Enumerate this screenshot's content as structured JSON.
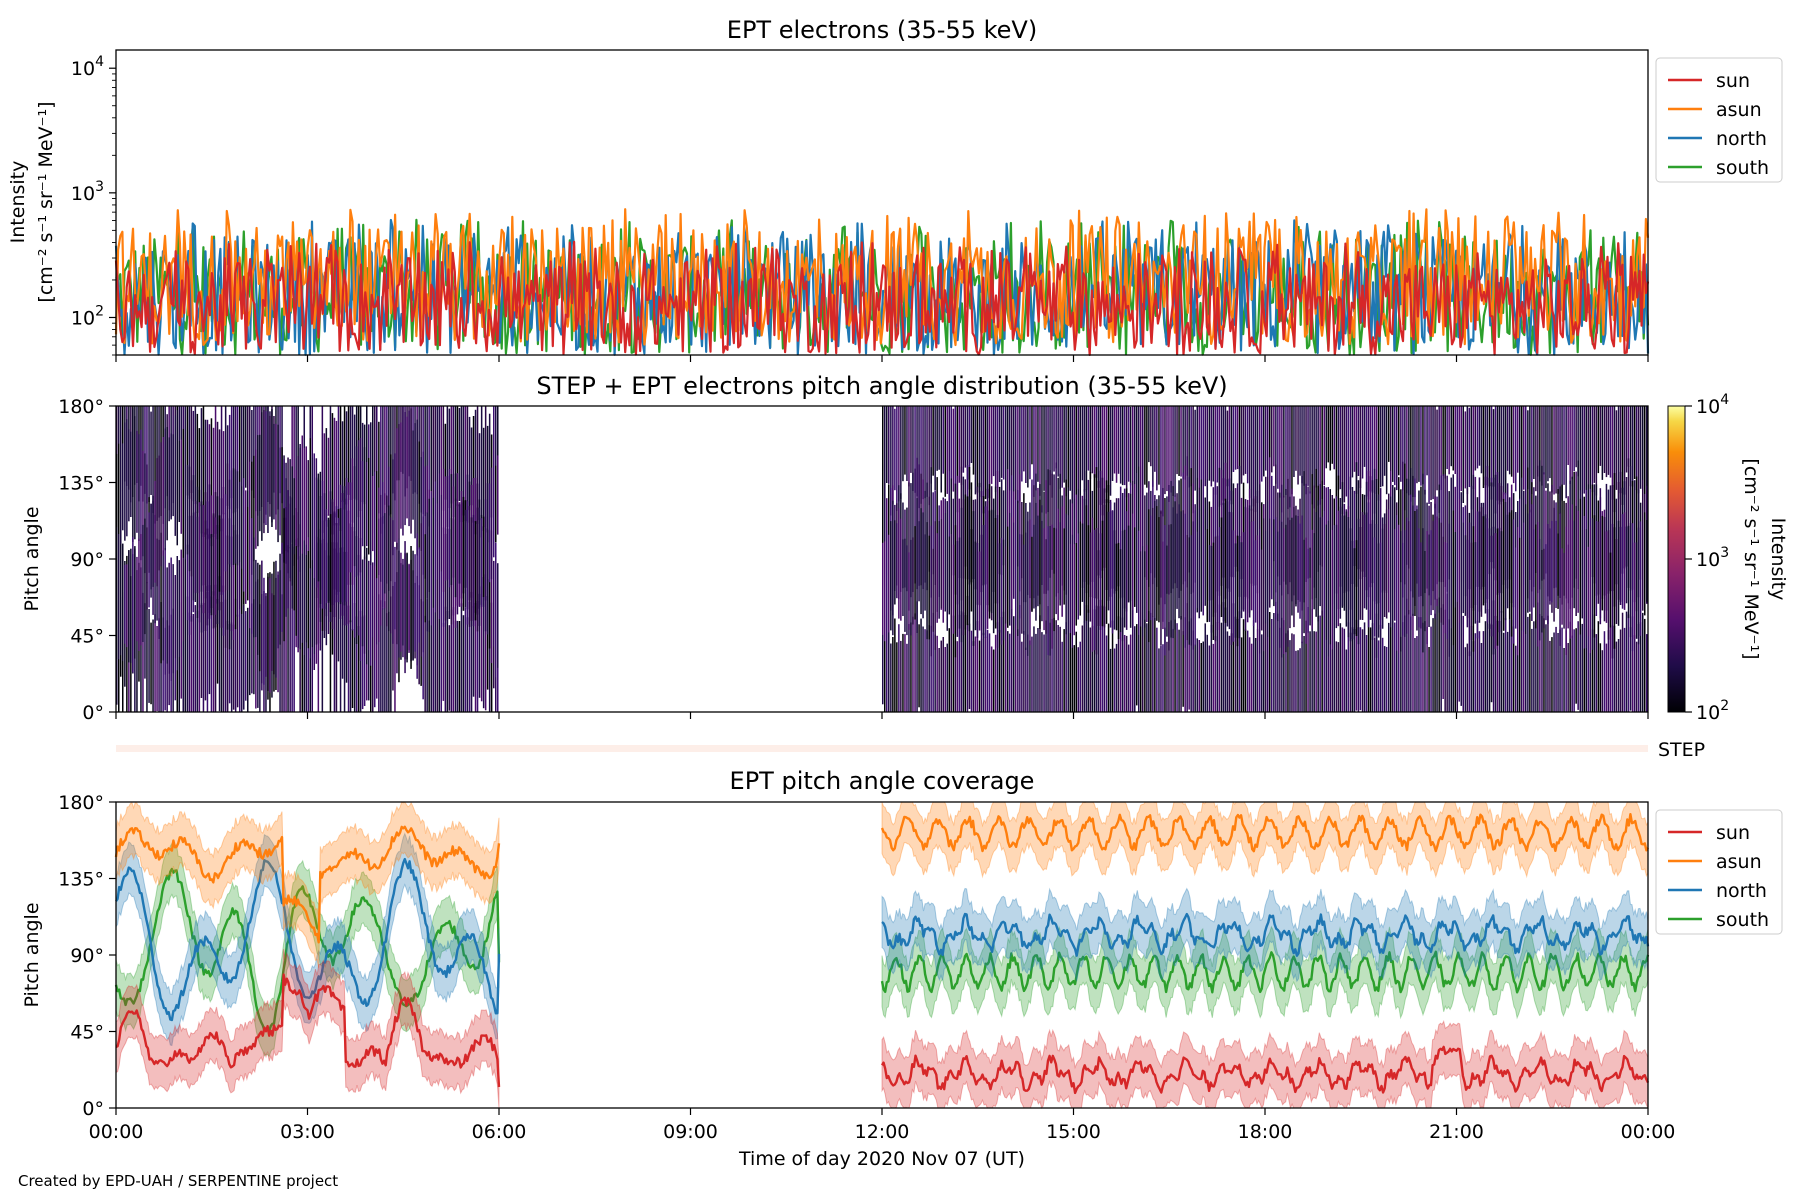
{
  "credit": "Created by EPD-UAH / SERPENTINE project",
  "colors": {
    "sun": "#d62728",
    "asun": "#ff7f0e",
    "north": "#1f77b4",
    "south": "#2ca02c"
  },
  "chart_data": [
    {
      "type": "line",
      "title": "EPT electrons (35-55 keV)",
      "ylabel": "Intensity",
      "ylabel_units": "[cm⁻² s⁻¹ sr⁻¹ MeV⁻¹]",
      "yscale": "log",
      "ylim": [
        50,
        14000
      ],
      "yticks": [
        {
          "value": 100,
          "base": "10",
          "exp": "2"
        },
        {
          "value": 1000,
          "base": "10",
          "exp": "3"
        },
        {
          "value": 10000,
          "base": "10",
          "exp": "4"
        }
      ],
      "xlim": [
        "2020-11-07T00:00",
        "2020-11-08T00:00"
      ],
      "legend": "outside-right-top",
      "series": [
        {
          "name": "sun",
          "key": "sun",
          "typical_range": [
            50,
            300
          ]
        },
        {
          "name": "asun",
          "key": "asun",
          "typical_range": [
            60,
            550
          ]
        },
        {
          "name": "north",
          "key": "north",
          "typical_range": [
            50,
            450
          ]
        },
        {
          "name": "south",
          "key": "south",
          "typical_range": [
            50,
            450
          ]
        }
      ]
    },
    {
      "type": "heatmap",
      "title": "STEP + EPT electrons pitch angle distribution (35-55 keV)",
      "ylabel": "Pitch angle",
      "ylim": [
        0,
        180
      ],
      "yticks": [
        "0°",
        "45°",
        "90°",
        "135°",
        "180°"
      ],
      "data_gaps": [
        [
          "2020-11-07T06:00",
          "2020-11-07T12:00"
        ]
      ],
      "colorbar": {
        "label": "Intensity",
        "units": "[cm⁻² s⁻¹ sr⁻¹ MeV⁻¹]",
        "scale": "log",
        "range": [
          100,
          10000
        ],
        "colormap": "inferno",
        "ticks": [
          {
            "value": 100,
            "base": "10",
            "exp": "2"
          },
          {
            "value": 1000,
            "base": "10",
            "exp": "3"
          },
          {
            "value": 10000,
            "base": "10",
            "exp": "4"
          }
        ]
      },
      "strip_label": "STEP"
    },
    {
      "type": "line",
      "title": "EPT pitch angle coverage",
      "ylabel": "Pitch angle",
      "ylim": [
        0,
        180
      ],
      "yticks": [
        "0°",
        "45°",
        "90°",
        "135°",
        "180°"
      ],
      "xlabel": "Time of day 2020 Nov 07 (UT)",
      "xticks": [
        "00:00",
        "03:00",
        "06:00",
        "09:00",
        "12:00",
        "15:00",
        "18:00",
        "21:00",
        "00:00"
      ],
      "legend": "outside-right-top",
      "data_gaps": [
        [
          "2020-11-07T06:00",
          "2020-11-07T12:00"
        ]
      ],
      "series": [
        {
          "name": "sun",
          "key": "sun",
          "before_gap_mean": 25,
          "after_gap_mean": 20
        },
        {
          "name": "asun",
          "key": "asun",
          "before_gap_mean": 150,
          "after_gap_mean": 162
        },
        {
          "name": "north",
          "key": "north",
          "before_gap_mean": 100,
          "after_gap_mean": 102
        },
        {
          "name": "south",
          "key": "south",
          "before_gap_mean": 85,
          "after_gap_mean": 80
        }
      ]
    }
  ]
}
